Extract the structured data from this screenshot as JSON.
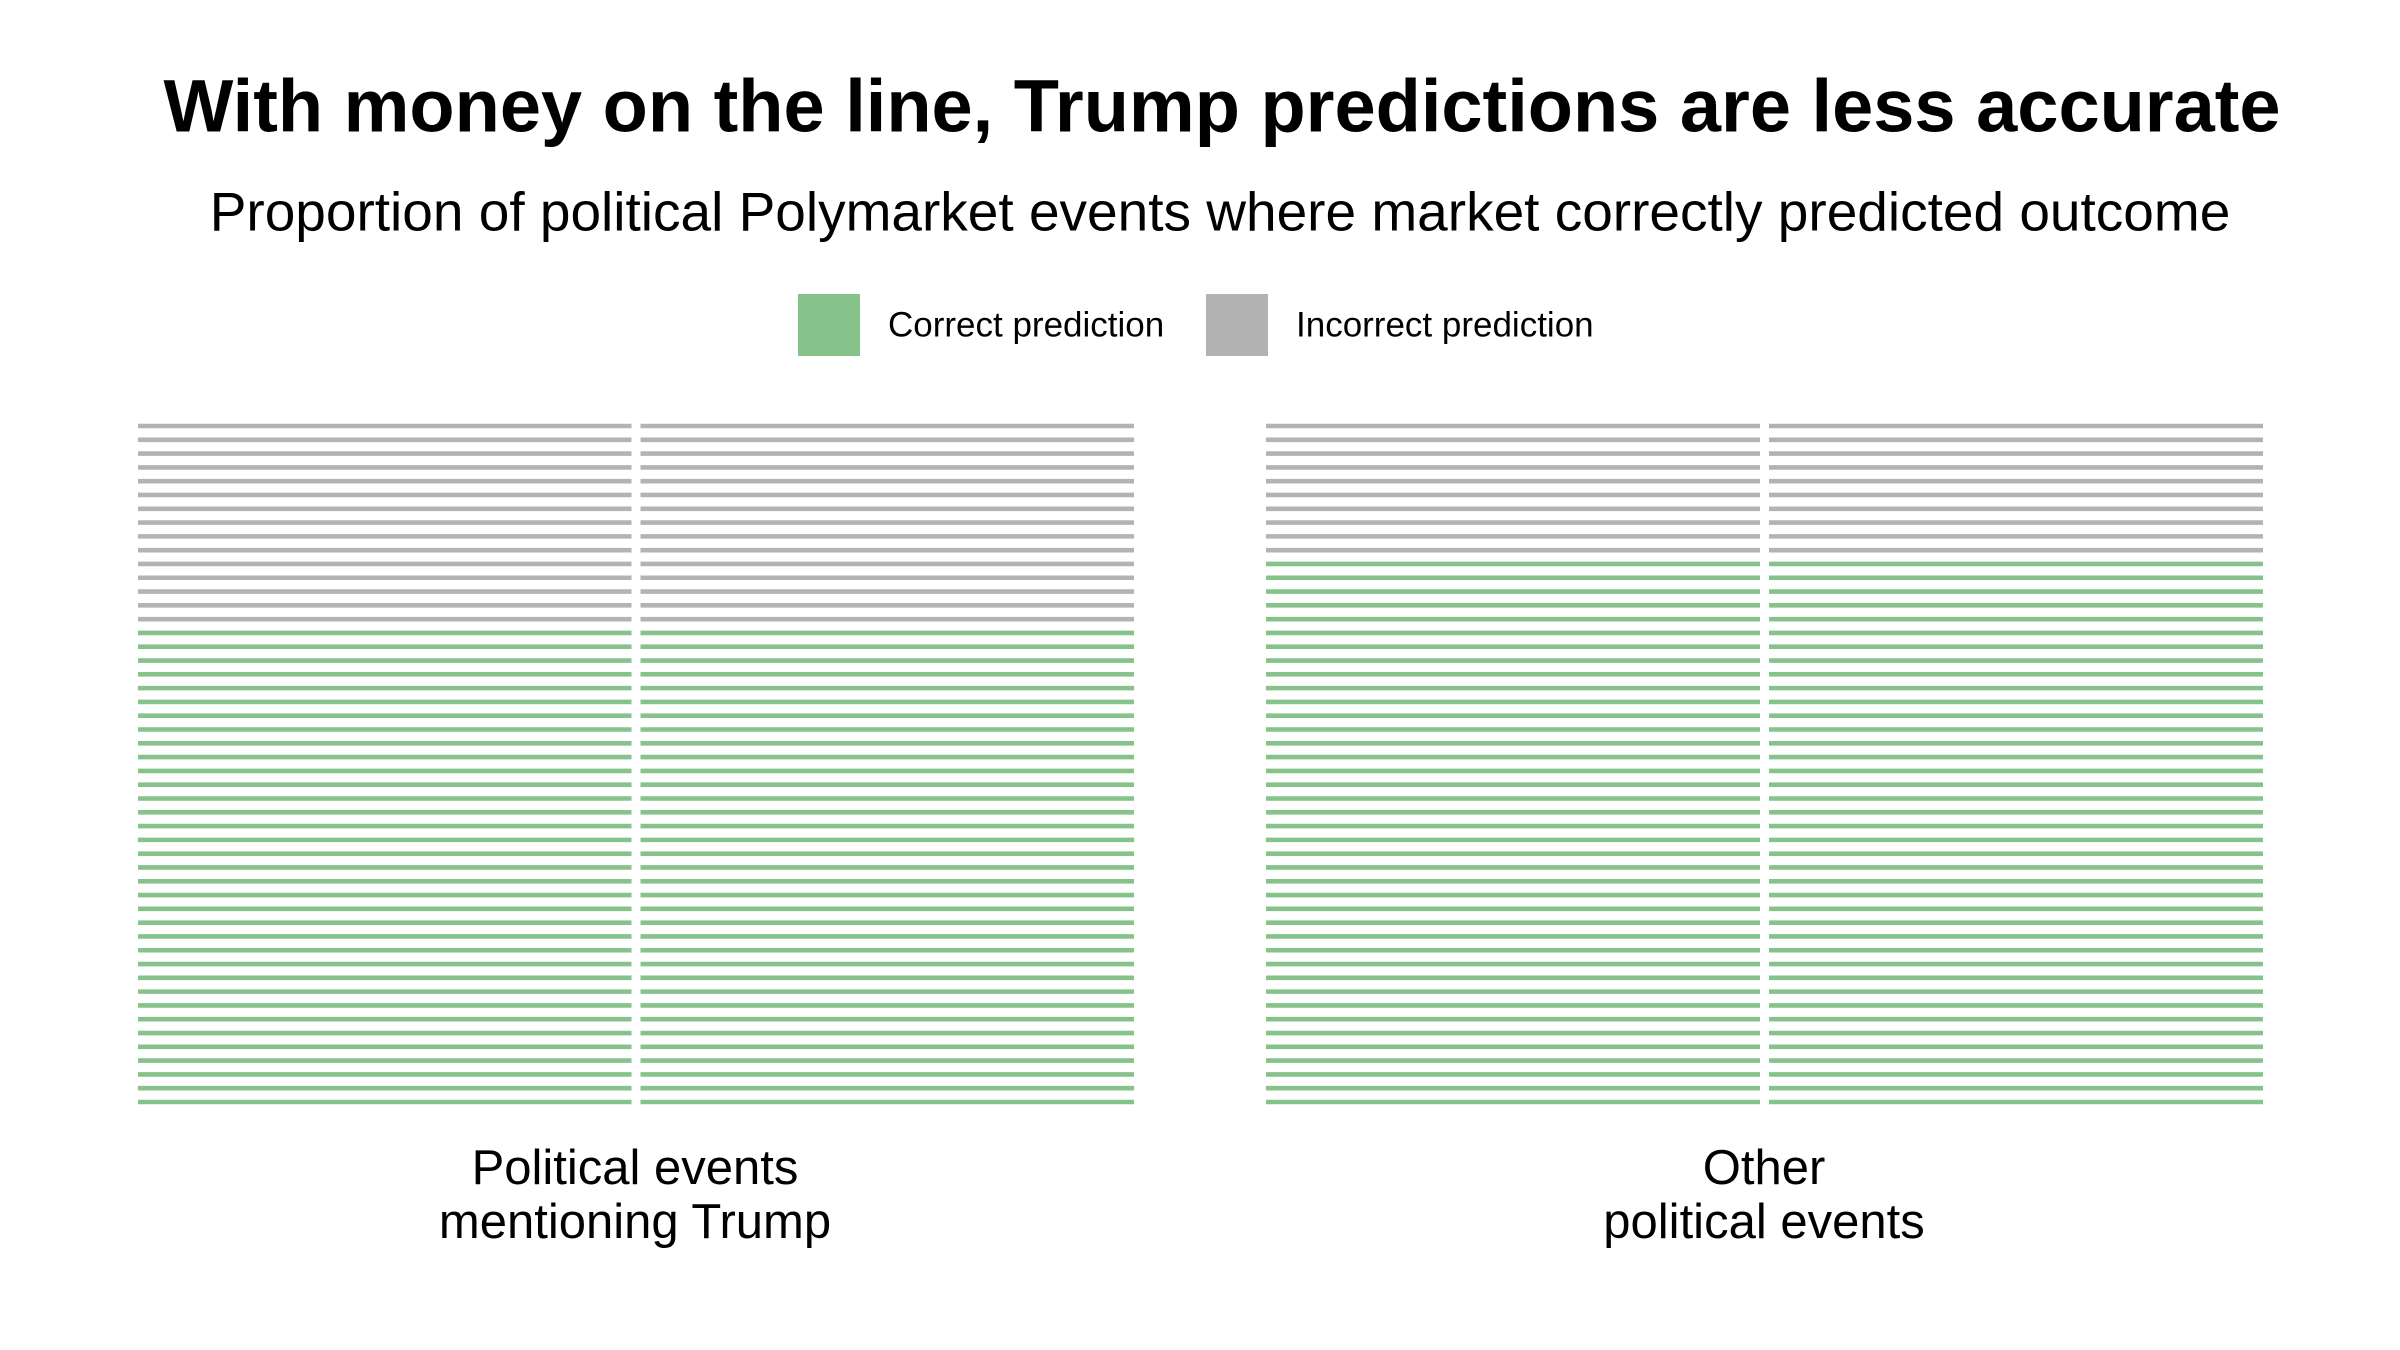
{
  "chart_data": {
    "type": "waffle",
    "title": "With money on the line, Trump predictions are less accurate",
    "subtitle": "Proportion of political Polymarket events where market correctly predicted outcome",
    "categories": [
      "Political events\nmentioning Trump",
      "Other\npolitical events"
    ],
    "series": [
      {
        "name": "Correct prediction",
        "color": "#86c38a",
        "values": [
          70,
          80
        ]
      },
      {
        "name": "Incorrect prediction",
        "color": "#b3b3b3",
        "values": [
          30,
          20
        ]
      }
    ]
  }
}
